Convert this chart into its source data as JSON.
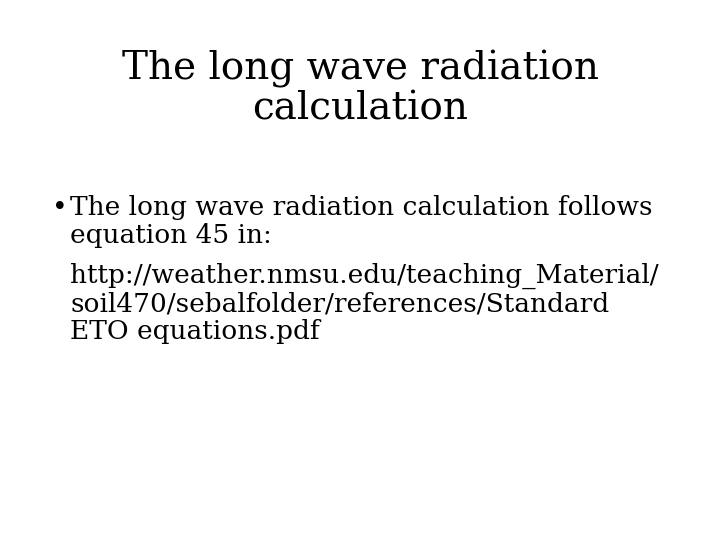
{
  "title_line1": "The long wave radiation",
  "title_line2": "calculation",
  "bullet_text_line1": "The long wave radiation calculation follows",
  "bullet_text_line2": "equation 45 in:",
  "url_line1": "http://weather.nmsu.edu/teaching_Material/",
  "url_line2": "soil470/sebalfolder/references/Standard",
  "url_line3": "ETO equations.pdf",
  "background_color": "#ffffff",
  "text_color": "#000000",
  "title_fontsize": 28,
  "body_fontsize": 19,
  "font_family": "DejaVu Serif"
}
